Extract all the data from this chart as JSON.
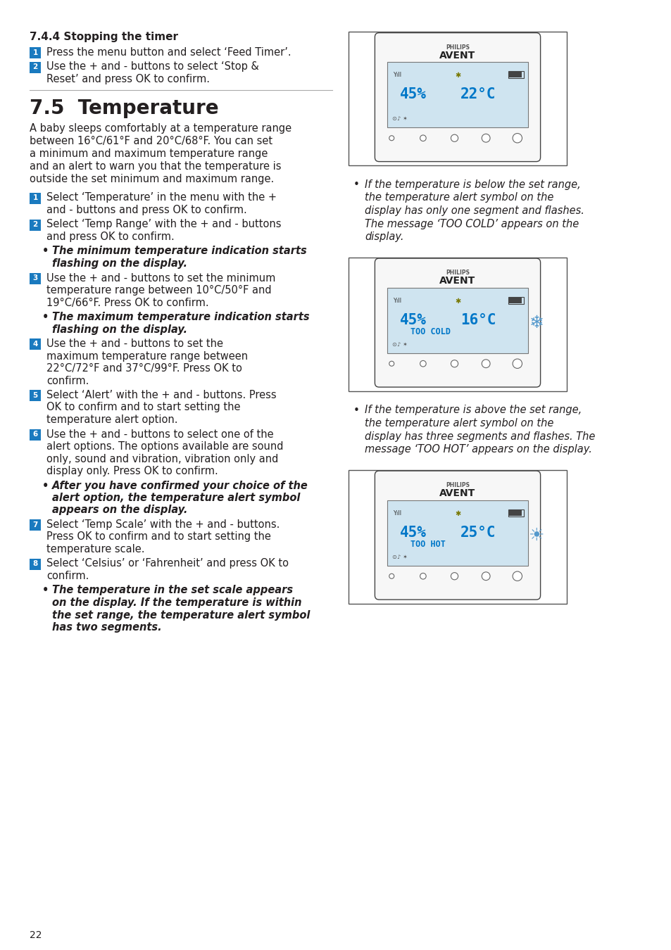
{
  "page_num": "22",
  "bg_color": "#ffffff",
  "text_col": "#231f20",
  "blue": "#0077c8",
  "badge_blue": "#1a7abf",
  "lcd_bg": "#cfe4f0",
  "section_744_title": "7.4.4 Stopping the timer",
  "s744_steps": [
    "Press the menu button and select ‘Feed Timer’.",
    [
      "Use the + and - buttons to select ‘Stop &",
      "Reset’ and press OK to confirm."
    ]
  ],
  "section_75_title": "7.5  Temperature",
  "s75_intro": [
    "A baby sleeps comfortably at a temperature range",
    "between 16°C/61°F and 20°C/68°F. You can set",
    "a minimum and maximum temperature range",
    "and an alert to warn you that the temperature is",
    "outside the set minimum and maximum range."
  ],
  "s75_items": [
    {
      "type": "step",
      "num": 1,
      "lines": [
        "Select ‘Temperature’ in the menu with the +",
        "and - buttons and press OK to confirm."
      ]
    },
    {
      "type": "step",
      "num": 2,
      "lines": [
        "Select ‘Temp Range’ with the + and - buttons",
        "and press OK to confirm."
      ]
    },
    {
      "type": "bullet_bold",
      "lines": [
        "The minimum temperature indication starts",
        "flashing on the display."
      ]
    },
    {
      "type": "step",
      "num": 3,
      "lines": [
        "Use the + and - buttons to set the minimum",
        "temperature range between 10°C/50°F and",
        "19°C/66°F. Press OK to confirm."
      ]
    },
    {
      "type": "bullet_bold",
      "lines": [
        "The maximum temperature indication starts",
        "flashing on the display."
      ]
    },
    {
      "type": "step",
      "num": 4,
      "lines": [
        "Use the + and - buttons to set the",
        "maximum temperature range between",
        "22°C/72°F and 37°C/99°F. Press OK to",
        "confirm."
      ]
    },
    {
      "type": "step",
      "num": 5,
      "lines": [
        "Select ‘Alert’ with the + and - buttons. Press",
        "OK to confirm and to start setting the",
        "temperature alert option."
      ]
    },
    {
      "type": "step",
      "num": 6,
      "lines": [
        "Use the + and - buttons to select one of the",
        "alert options. The options available are sound",
        "only, sound and vibration, vibration only and",
        "display only. Press OK to confirm."
      ]
    },
    {
      "type": "bullet_bold",
      "lines": [
        "After you have confirmed your choice of the",
        "alert option, the temperature alert symbol",
        "appears on the display."
      ]
    },
    {
      "type": "step",
      "num": 7,
      "lines": [
        "Select ‘Temp Scale’ with the + and - buttons.",
        "Press OK to confirm and to start setting the",
        "temperature scale."
      ]
    },
    {
      "type": "step",
      "num": 8,
      "lines": [
        "Select ‘Celsius’ or ‘Fahrenheit’ and press OK to",
        "confirm."
      ]
    },
    {
      "type": "bullet_bold",
      "lines": [
        "The temperature in the set scale appears",
        "on the display. If the temperature is within",
        "the set range, the temperature alert symbol",
        "has two segments."
      ]
    }
  ],
  "bullet_cold": [
    "If the temperature is below the set range,",
    "the temperature alert symbol on the",
    "display has only one segment and flashes.",
    "The message ‘TOO COLD’ appears on the",
    "display."
  ],
  "bullet_hot": [
    "If the temperature is above the set range,",
    "the temperature alert symbol on the",
    "display has three segments and flashes. The",
    "message ‘TOO HOT’ appears on the display."
  ],
  "d1_pct": "45%",
  "d1_temp": "22°C",
  "d2_pct": "45%",
  "d2_temp": "16°C",
  "d2_msg": "TOO COLD",
  "d3_pct": "45%",
  "d3_temp": "25°C",
  "d3_msg": "TOO HOT"
}
